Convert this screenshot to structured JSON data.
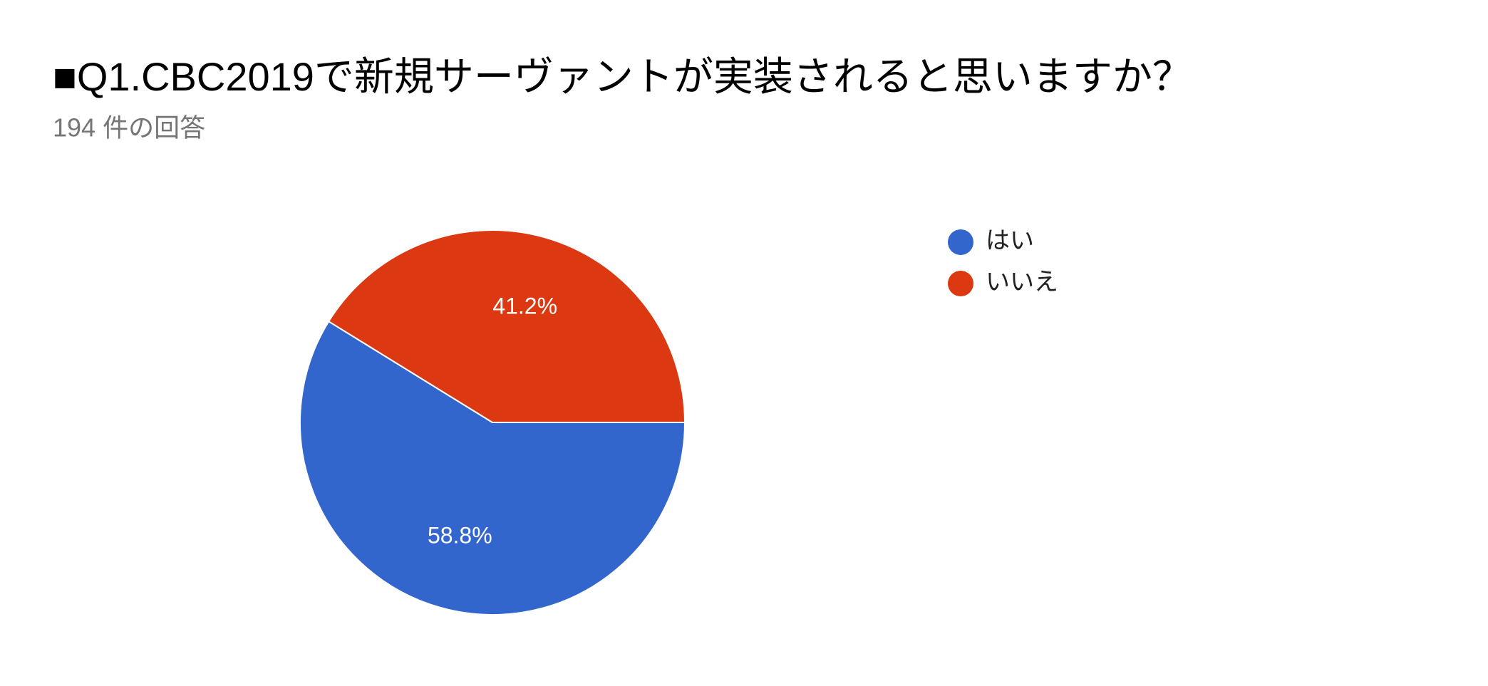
{
  "chart_data": {
    "type": "pie",
    "title": "■Q1.CBC2019で新規サーヴァントが実装されると思いますか？",
    "subtitle": "194 件の回答",
    "categories": [
      "はい",
      "いいえ"
    ],
    "values": [
      58.8,
      41.2
    ],
    "value_labels": [
      "58.8%",
      "41.2%"
    ],
    "colors": [
      "#3366cc",
      "#dc3912"
    ],
    "legend": "right"
  }
}
